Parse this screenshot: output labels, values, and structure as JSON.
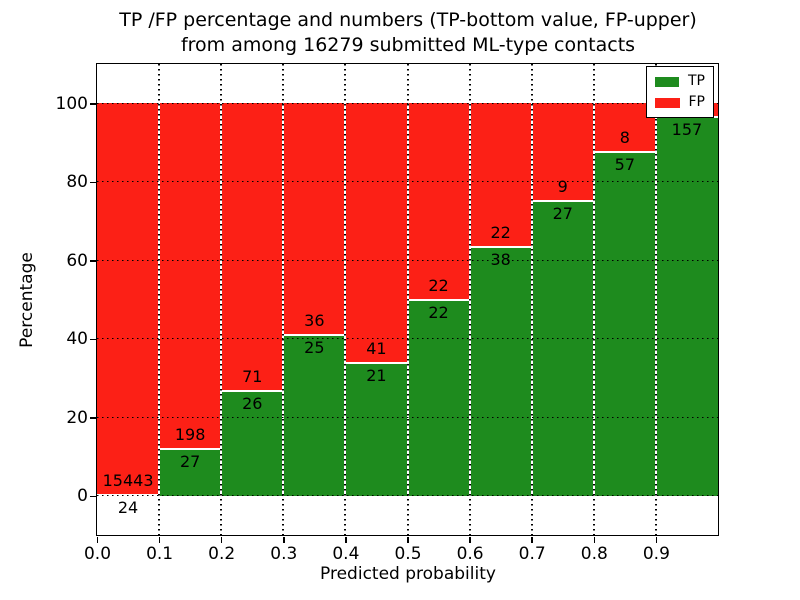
{
  "chart_data": {
    "type": "bar",
    "stacked": true,
    "title_line1": "TP /FP percentage and numbers (TP-bottom value, FP-upper)",
    "title_line2": "from among 16279 submitted ML-type contacts",
    "xlabel": "Predicted probability",
    "ylabel": "Percentage",
    "xlim": [
      0.0,
      1.0
    ],
    "ylim": [
      -10,
      110
    ],
    "x_ticks": [
      "0.0",
      "0.1",
      "0.2",
      "0.3",
      "0.4",
      "0.5",
      "0.6",
      "0.7",
      "0.8",
      "0.9"
    ],
    "x_tick_values": [
      0.0,
      0.1,
      0.2,
      0.3,
      0.4,
      0.5,
      0.6,
      0.7,
      0.8,
      0.9
    ],
    "y_ticks": [
      "0",
      "20",
      "40",
      "60",
      "80",
      "100"
    ],
    "y_tick_values": [
      0,
      20,
      40,
      60,
      80,
      100
    ],
    "grid": true,
    "legend": {
      "position": "upper right",
      "entries": [
        {
          "label": "TP",
          "color": "#1e8b1e"
        },
        {
          "label": "FP",
          "color": "#fc2016"
        }
      ]
    },
    "colors": {
      "tp": "#1e8b1e",
      "fp": "#fc2016",
      "bar_edge": "#ffffff"
    },
    "bars": [
      {
        "x_start": 0.0,
        "x_end": 0.1,
        "tp": 24,
        "fp": 15443,
        "tp_pct": 0.2
      },
      {
        "x_start": 0.1,
        "x_end": 0.2,
        "tp": 27,
        "fp": 198,
        "tp_pct": 12.0
      },
      {
        "x_start": 0.2,
        "x_end": 0.3,
        "tp": 26,
        "fp": 71,
        "tp_pct": 26.8
      },
      {
        "x_start": 0.3,
        "x_end": 0.4,
        "tp": 25,
        "fp": 36,
        "tp_pct": 41.0
      },
      {
        "x_start": 0.4,
        "x_end": 0.5,
        "tp": 21,
        "fp": 41,
        "tp_pct": 33.9
      },
      {
        "x_start": 0.5,
        "x_end": 0.6,
        "tp": 22,
        "fp": 22,
        "tp_pct": 50.0
      },
      {
        "x_start": 0.6,
        "x_end": 0.7,
        "tp": 38,
        "fp": 22,
        "tp_pct": 63.3
      },
      {
        "x_start": 0.7,
        "x_end": 0.8,
        "tp": 27,
        "fp": 9,
        "tp_pct": 75.0
      },
      {
        "x_start": 0.8,
        "x_end": 0.9,
        "tp": 57,
        "fp": 8,
        "tp_pct": 87.7
      },
      {
        "x_start": 0.9,
        "x_end": 1.0,
        "tp": 157,
        "fp": null,
        "tp_pct": 96.5
      }
    ]
  }
}
